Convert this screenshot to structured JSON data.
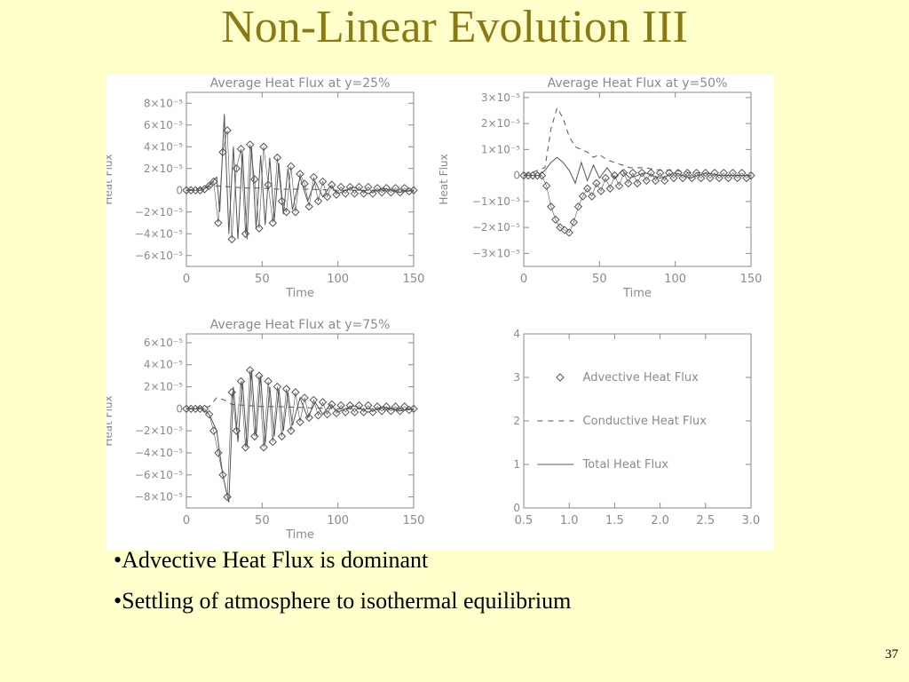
{
  "slide": {
    "title": "Non-Linear Evolution III",
    "bullets": [
      "•Advective Heat Flux is dominant",
      "•Settling of atmosphere to isothermal equilibrium"
    ],
    "page_number": "37"
  },
  "colors": {
    "background": "#ffffcc",
    "title": "#8a7a14",
    "axes": "#8a8a8a",
    "data": "#555555"
  },
  "chart_data": [
    {
      "type": "line",
      "title": "Average Heat Flux at y=25%",
      "xlabel": "Time",
      "ylabel": "Heat Flux",
      "xlim": [
        0,
        150
      ],
      "ylim": [
        -7e-05,
        9e-05
      ],
      "xticks": [
        "0",
        "50",
        "100",
        "150"
      ],
      "yticks": [
        {
          "v": 8e-05,
          "label": "8×10⁻⁵"
        },
        {
          "v": 6e-05,
          "label": "6×10⁻⁵"
        },
        {
          "v": 4e-05,
          "label": "4×10⁻⁵"
        },
        {
          "v": 2e-05,
          "label": "2×10⁻⁵"
        },
        {
          "v": 0,
          "label": "0"
        },
        {
          "v": -2e-05,
          "label": "−2×10⁻⁵"
        },
        {
          "v": -4e-05,
          "label": "−4×10⁻⁵"
        },
        {
          "v": -6e-05,
          "label": "−6×10⁻⁵"
        }
      ],
      "series": [
        {
          "style": "diamond",
          "x": [
            0,
            3,
            6,
            9,
            12,
            15,
            18,
            21,
            24,
            27,
            30,
            33,
            36,
            39,
            42,
            45,
            48,
            51,
            54,
            57,
            60,
            63,
            66,
            69,
            72,
            75,
            78,
            81,
            84,
            87,
            90,
            93,
            96,
            99,
            102,
            105,
            108,
            111,
            114,
            117,
            120,
            123,
            126,
            129,
            132,
            135,
            138,
            141,
            144,
            147,
            150
          ],
          "y": [
            0,
            0,
            0,
            0,
            1e-06,
            4e-06,
            8e-06,
            -3e-05,
            3.5e-05,
            5.5e-05,
            -4.5e-05,
            2e-05,
            3.8e-05,
            -4e-05,
            4.2e-05,
            1e-05,
            -3.5e-05,
            4e-05,
            5e-06,
            -3e-05,
            3e-05,
            -1e-05,
            -2e-05,
            2.2e-05,
            -2e-05,
            1.5e-05,
            6e-06,
            -1.5e-05,
            1.2e-05,
            -1e-05,
            8e-06,
            -6e-06,
            5e-06,
            -4e-06,
            3e-06,
            -3e-06,
            3e-06,
            -3e-06,
            3e-06,
            -3e-06,
            3e-06,
            -3e-06,
            2e-06,
            -2e-06,
            2e-06,
            -2e-06,
            2e-06,
            -2e-06,
            2e-06,
            -1e-06,
            0
          ]
        },
        {
          "style": "solid",
          "x": [
            0,
            10,
            15,
            20,
            22,
            25,
            28,
            31,
            34,
            37,
            40,
            43,
            46,
            49,
            52,
            55,
            58,
            61,
            64,
            67,
            70,
            75,
            80,
            85,
            90,
            95,
            100,
            110,
            120,
            130,
            140,
            150
          ],
          "y": [
            0,
            0,
            5e-06,
            1.2e-05,
            -2e-05,
            7e-05,
            -4e-05,
            4e-05,
            -4.5e-05,
            3.5e-05,
            -4.5e-05,
            4e-05,
            -3.5e-05,
            3.2e-05,
            -3.2e-05,
            3e-05,
            -2.8e-05,
            2.5e-05,
            -2.2e-05,
            2e-05,
            -1.8e-05,
            1.2e-05,
            -1e-05,
            8e-06,
            -6e-06,
            4e-06,
            -3e-06,
            3e-06,
            -3e-06,
            2e-06,
            -2e-06,
            0
          ]
        },
        {
          "style": "dashed",
          "x": [
            0,
            20,
            30,
            40,
            50,
            60,
            80,
            100,
            150
          ],
          "y": [
            0,
            4e-06,
            3e-06,
            2e-06,
            2e-06,
            1e-06,
            1e-06,
            0,
            0
          ]
        }
      ]
    },
    {
      "type": "line",
      "title": "Average Heat Flux at y=50%",
      "xlabel": "Time",
      "ylabel": "Heat Flux",
      "xlim": [
        0,
        150
      ],
      "ylim": [
        -3.5e-05,
        3.2e-05
      ],
      "xticks": [
        "0",
        "50",
        "100",
        "150"
      ],
      "yticks": [
        {
          "v": 3e-05,
          "label": "3×10⁻⁵"
        },
        {
          "v": 2e-05,
          "label": "2×10⁻⁵"
        },
        {
          "v": 1e-05,
          "label": "1×10⁻⁵"
        },
        {
          "v": 0,
          "label": "0"
        },
        {
          "v": -1e-05,
          "label": "−1×10⁻⁵"
        },
        {
          "v": -2e-05,
          "label": "−2×10⁻⁵"
        },
        {
          "v": -3e-05,
          "label": "−3×10⁻⁵"
        }
      ],
      "series": [
        {
          "style": "diamond",
          "x": [
            0,
            3,
            6,
            9,
            12,
            15,
            18,
            21,
            24,
            27,
            30,
            33,
            36,
            39,
            42,
            45,
            48,
            51,
            54,
            57,
            60,
            63,
            66,
            69,
            72,
            75,
            78,
            81,
            84,
            87,
            90,
            93,
            96,
            99,
            102,
            105,
            108,
            111,
            114,
            117,
            120,
            123,
            126,
            129,
            132,
            135,
            138,
            141,
            144,
            147,
            150
          ],
          "y": [
            0,
            0,
            0,
            0,
            0,
            -4e-06,
            -1.2e-05,
            -1.7e-05,
            -2e-05,
            -2.1e-05,
            -2.2e-05,
            -1.8e-05,
            -1.2e-05,
            -8e-06,
            -5e-06,
            -8e-06,
            -3e-06,
            -6e-06,
            -1e-06,
            -5e-06,
            0,
            -4e-06,
            1e-06,
            -3e-06,
            1e-06,
            -3e-06,
            1e-06,
            -2e-06,
            1e-06,
            -2e-06,
            1e-06,
            -2e-06,
            1e-06,
            -1e-06,
            1e-06,
            -1e-06,
            1e-06,
            -1e-06,
            1e-06,
            -1e-06,
            1e-06,
            -1e-06,
            1e-06,
            -1e-06,
            1e-06,
            -1e-06,
            1e-06,
            -1e-06,
            1e-06,
            -1e-06,
            0
          ]
        },
        {
          "style": "solid",
          "x": [
            0,
            10,
            14,
            18,
            22,
            26,
            30,
            34,
            38,
            42,
            46,
            50,
            55,
            60,
            65,
            70,
            80,
            90,
            100,
            110,
            120,
            130,
            140,
            150
          ],
          "y": [
            0,
            0,
            2e-06,
            5e-06,
            7e-06,
            5e-06,
            2e-06,
            -3e-06,
            5e-06,
            -2e-06,
            4e-06,
            -1e-06,
            3e-06,
            -1e-06,
            2e-06,
            -1e-06,
            1e-06,
            -1e-06,
            1e-06,
            -1e-06,
            1e-06,
            0,
            0,
            0
          ]
        },
        {
          "style": "dashed",
          "x": [
            0,
            14,
            18,
            22,
            26,
            30,
            34,
            38,
            42,
            46,
            50,
            55,
            60,
            65,
            70,
            80,
            90,
            100,
            110,
            120,
            130,
            140,
            150
          ],
          "y": [
            0,
            3e-06,
            1.8e-05,
            2.6e-05,
            2.2e-05,
            1.5e-05,
            1.1e-05,
            1e-05,
            9e-06,
            7e-06,
            8e-06,
            6e-06,
            5e-06,
            4e-06,
            3e-06,
            3e-06,
            2e-06,
            2e-06,
            1e-06,
            1e-06,
            0,
            0,
            0
          ]
        }
      ]
    },
    {
      "type": "line",
      "title": "Average Heat Flux at y=75%",
      "xlabel": "Time",
      "ylabel": "Heat Flux",
      "xlim": [
        0,
        150
      ],
      "ylim": [
        -9e-05,
        6.8e-05
      ],
      "xticks": [
        "0",
        "50",
        "100",
        "150"
      ],
      "yticks": [
        {
          "v": 6e-05,
          "label": "6×10⁻⁵"
        },
        {
          "v": 4e-05,
          "label": "4×10⁻⁵"
        },
        {
          "v": 2e-05,
          "label": "2×10⁻⁵"
        },
        {
          "v": 0,
          "label": "0"
        },
        {
          "v": -2e-05,
          "label": "−2×10⁻⁵"
        },
        {
          "v": -4e-05,
          "label": "−4×10⁻⁵"
        },
        {
          "v": -6e-05,
          "label": "−6×10⁻⁵"
        },
        {
          "v": -8e-05,
          "label": "−8×10⁻⁵"
        }
      ],
      "series": [
        {
          "style": "diamond",
          "x": [
            0,
            3,
            6,
            9,
            12,
            15,
            18,
            21,
            24,
            27,
            30,
            33,
            36,
            39,
            42,
            45,
            48,
            51,
            54,
            57,
            60,
            63,
            66,
            69,
            72,
            75,
            78,
            81,
            84,
            87,
            90,
            93,
            96,
            99,
            102,
            105,
            108,
            111,
            114,
            117,
            120,
            123,
            126,
            129,
            132,
            135,
            138,
            141,
            144,
            147,
            150
          ],
          "y": [
            0,
            0,
            0,
            0,
            0,
            -5e-06,
            -2e-05,
            -4e-05,
            -6e-05,
            -8e-05,
            1.5e-05,
            -2e-05,
            2.5e-05,
            -3.5e-05,
            3.5e-05,
            -2.5e-05,
            3e-05,
            -3.5e-05,
            2.5e-05,
            -3e-05,
            2e-05,
            -2.5e-05,
            1.8e-05,
            -2e-05,
            1.5e-05,
            -1.2e-05,
            1e-05,
            -8e-06,
            8e-06,
            -6e-06,
            6e-06,
            -5e-06,
            4e-06,
            -4e-06,
            3e-06,
            -3e-06,
            3e-06,
            -3e-06,
            3e-06,
            -3e-06,
            3e-06,
            -3e-06,
            2e-06,
            -2e-06,
            2e-06,
            -2e-06,
            2e-06,
            -2e-06,
            2e-06,
            -1e-06,
            0
          ]
        },
        {
          "style": "solid",
          "x": [
            0,
            10,
            15,
            20,
            24,
            28,
            31,
            34,
            37,
            40,
            43,
            46,
            49,
            52,
            55,
            58,
            61,
            64,
            67,
            70,
            75,
            80,
            85,
            90,
            95,
            100,
            110,
            120,
            130,
            140,
            150
          ],
          "y": [
            0,
            0,
            -5e-06,
            -2e-05,
            -6e-05,
            -8.5e-05,
            2e-05,
            -3e-05,
            2.5e-05,
            -3.5e-05,
            3.5e-05,
            -2.5e-05,
            3e-05,
            -3.2e-05,
            2e-05,
            -2.5e-05,
            1.8e-05,
            -2e-05,
            1.5e-05,
            -1.5e-05,
            1e-05,
            -8e-06,
            6e-06,
            -5e-06,
            4e-06,
            -3e-06,
            3e-06,
            -3e-06,
            2e-06,
            -2e-06,
            0
          ]
        },
        {
          "style": "dashed",
          "x": [
            0,
            15,
            20,
            25,
            30,
            40,
            50,
            60,
            80,
            100,
            150
          ],
          "y": [
            0,
            2e-06,
            1e-05,
            8e-06,
            4e-06,
            3e-06,
            2e-06,
            2e-06,
            1e-06,
            0,
            0
          ]
        }
      ]
    },
    {
      "type": "legend",
      "xlim": [
        0.5,
        3.0
      ],
      "ylim": [
        0,
        4
      ],
      "xticks": [
        "0.5",
        "1.0",
        "1.5",
        "2.0",
        "2.5",
        "3.0"
      ],
      "yticks": [
        {
          "v": 4,
          "label": "4"
        },
        {
          "v": 3,
          "label": "3"
        },
        {
          "v": 2,
          "label": "2"
        },
        {
          "v": 1,
          "label": "1"
        },
        {
          "v": 0,
          "label": "0"
        }
      ],
      "entries": [
        {
          "style": "diamond",
          "label": "Advective Heat Flux"
        },
        {
          "style": "dashed",
          "label": "Conductive Heat Flux"
        },
        {
          "style": "solid",
          "label": "Total Heat Flux"
        }
      ]
    }
  ]
}
